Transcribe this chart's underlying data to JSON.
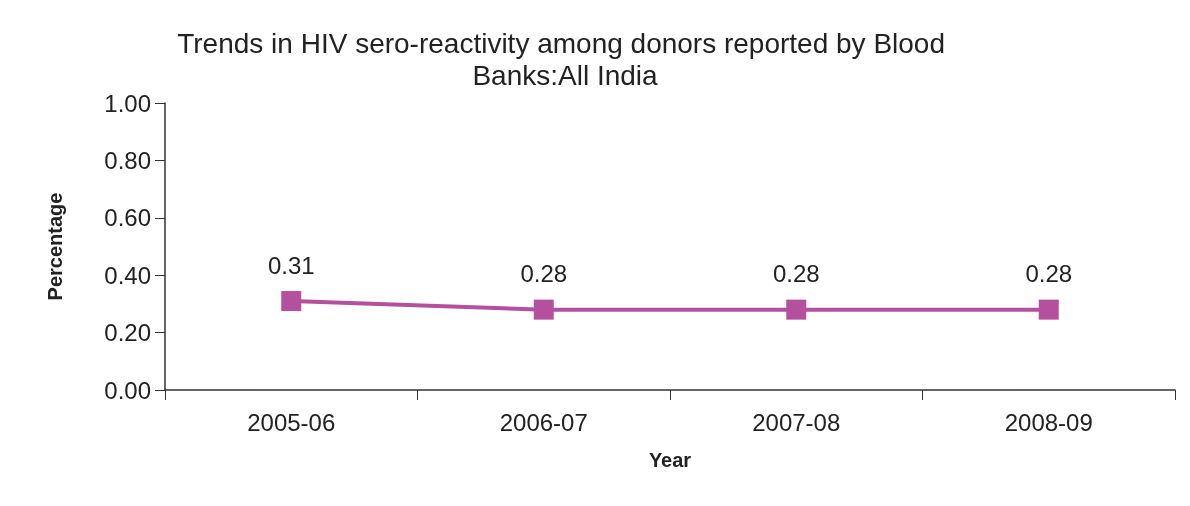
{
  "chart_data": {
    "type": "line",
    "title": "Trends in HIV sero-reactivity among donors reported by Blood Banks:All India",
    "xlabel": "Year",
    "ylabel": "Percentage",
    "categories": [
      "2005-06",
      "2006-07",
      "2007-08",
      "2008-09"
    ],
    "series": [
      {
        "color": "#b4509e",
        "values": [
          0.31,
          0.28,
          0.28,
          0.28
        ]
      }
    ],
    "ylim": [
      0,
      1
    ],
    "yticks": [
      {
        "value": 0,
        "label": "0.00"
      },
      {
        "value": 0.2,
        "label": "0.20"
      },
      {
        "value": 0.4,
        "label": "0.40"
      },
      {
        "value": 0.6,
        "label": "0.60"
      },
      {
        "value": 0.8,
        "label": "0.80"
      },
      {
        "value": 1,
        "label": "1.00"
      }
    ],
    "data_labels": true,
    "marker": "square",
    "line_style": "solid",
    "grid": false
  }
}
